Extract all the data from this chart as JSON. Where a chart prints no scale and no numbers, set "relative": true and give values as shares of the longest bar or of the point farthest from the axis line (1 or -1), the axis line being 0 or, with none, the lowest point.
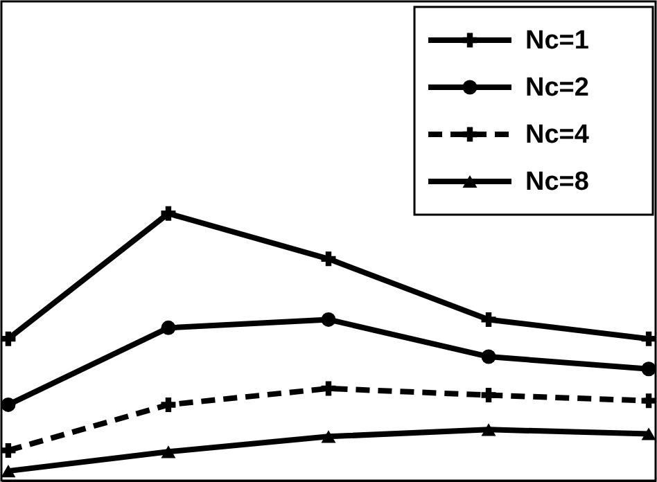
{
  "chart_data": {
    "type": "line",
    "relative": true,
    "categories": [
      null,
      null,
      null,
      null,
      null
    ],
    "grid": false,
    "legend": "top right",
    "tick_labels": false,
    "series": [
      {
        "name": "Nc=1",
        "color": "#000000",
        "marker": "cross",
        "line_style": "solid",
        "values": [
          0.531,
          1,
          0.83,
          0.603,
          0.531
        ]
      },
      {
        "name": "Nc=2",
        "color": "#000000",
        "marker": "circle",
        "line_style": "solid",
        "values": [
          0.284,
          0.572,
          0.603,
          0.464,
          0.418
        ]
      },
      {
        "name": "Nc=4",
        "color": "#000000",
        "marker": "cross",
        "line_style": "dashed",
        "values": [
          0.113,
          0.284,
          0.345,
          0.32,
          0.299
        ]
      },
      {
        "name": "Nc=8",
        "color": "#000000",
        "marker": "triangle",
        "line_style": "solid",
        "values": [
          0.036,
          0.108,
          0.165,
          0.191,
          0.175
        ]
      }
    ]
  }
}
